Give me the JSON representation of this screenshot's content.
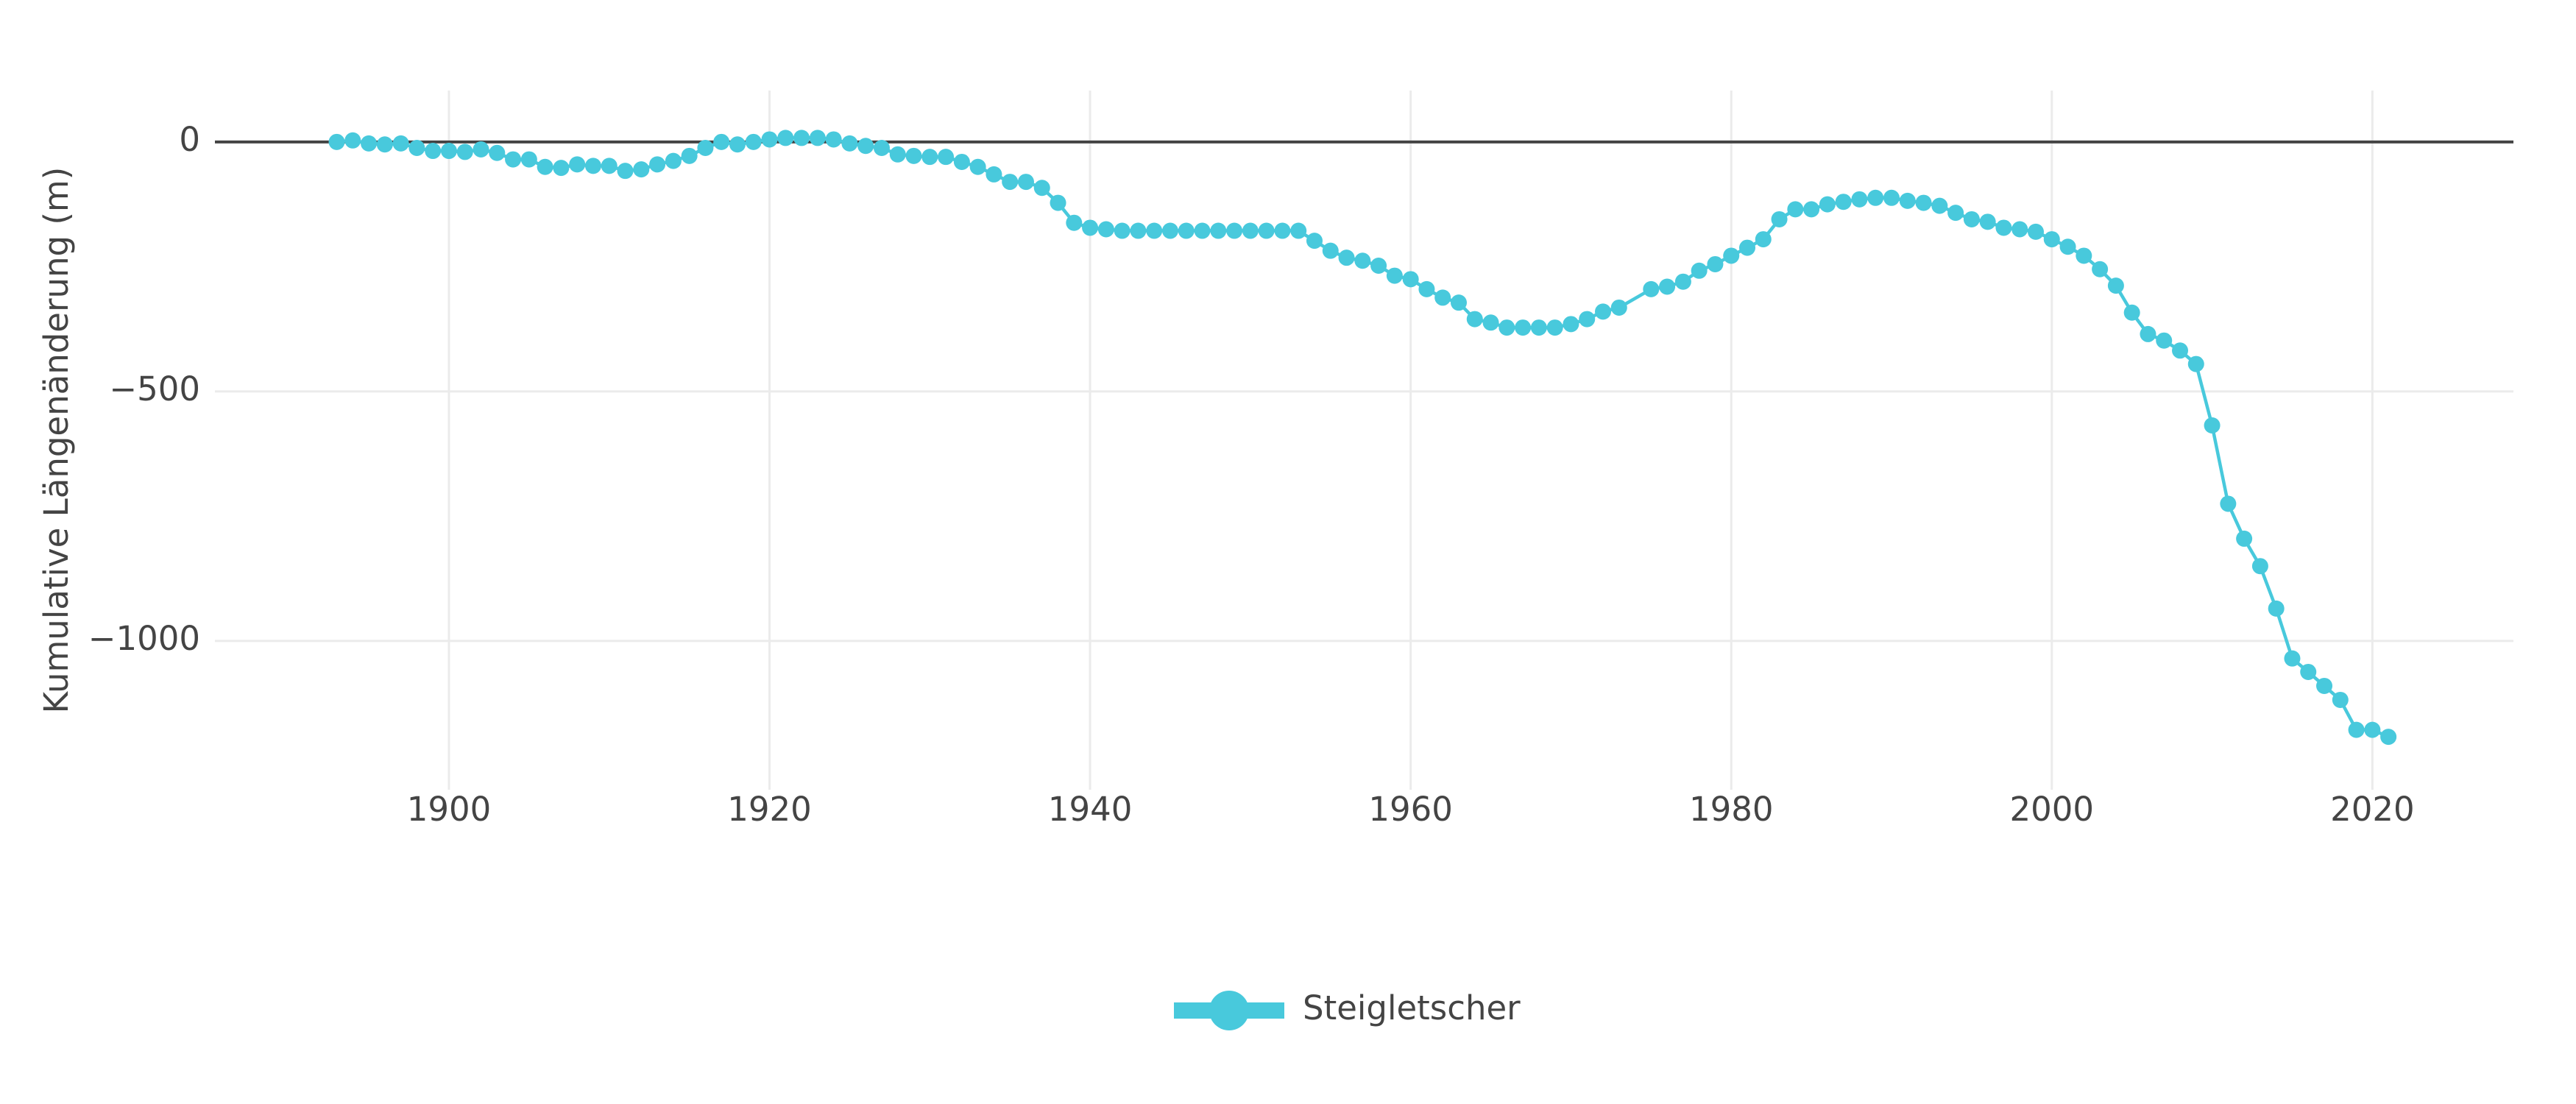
{
  "chart_data": {
    "type": "line",
    "y_label": "Kumulative Längenänderung (m)",
    "x": [
      1893,
      1894,
      1895,
      1896,
      1897,
      1898,
      1899,
      1900,
      1901,
      1902,
      1903,
      1904,
      1905,
      1906,
      1907,
      1908,
      1909,
      1910,
      1911,
      1912,
      1913,
      1914,
      1915,
      1916,
      1917,
      1918,
      1919,
      1920,
      1921,
      1922,
      1923,
      1924,
      1925,
      1926,
      1927,
      1928,
      1929,
      1930,
      1931,
      1932,
      1933,
      1934,
      1935,
      1936,
      1937,
      1938,
      1939,
      1940,
      1941,
      1942,
      1943,
      1944,
      1945,
      1946,
      1947,
      1948,
      1949,
      1950,
      1951,
      1952,
      1953,
      1954,
      1955,
      1956,
      1957,
      1958,
      1959,
      1960,
      1961,
      1962,
      1963,
      1964,
      1965,
      1966,
      1967,
      1968,
      1969,
      1970,
      1971,
      1972,
      1973,
      1975,
      1976,
      1977,
      1978,
      1979,
      1980,
      1981,
      1982,
      1983,
      1984,
      1985,
      1986,
      1987,
      1988,
      1989,
      1990,
      1991,
      1992,
      1993,
      1994,
      1995,
      1996,
      1997,
      1998,
      1999,
      2000,
      2001,
      2002,
      2003,
      2004,
      2005,
      2006,
      2007,
      2008,
      2009,
      2010,
      2011,
      2012,
      2013,
      2014,
      2015,
      2016,
      2017,
      2018,
      2019,
      2020,
      2021
    ],
    "series": [
      {
        "name": "Steigletscher",
        "color": "#48c9dc",
        "values": [
          0,
          3,
          -3,
          -5,
          -3,
          -12,
          -18,
          -18,
          -20,
          -15,
          -22,
          -35,
          -35,
          -50,
          -52,
          -45,
          -48,
          -48,
          -58,
          -55,
          -45,
          -38,
          -28,
          -12,
          0,
          -5,
          0,
          5,
          8,
          8,
          8,
          5,
          -3,
          -8,
          -12,
          -25,
          -28,
          -30,
          -30,
          -40,
          -50,
          -65,
          -80,
          -80,
          -92,
          -122,
          -162,
          -172,
          -175,
          -178,
          -178,
          -178,
          -178,
          -178,
          -178,
          -178,
          -178,
          -178,
          -178,
          -178,
          -178,
          -198,
          -218,
          -232,
          -238,
          -248,
          -268,
          -275,
          -295,
          -312,
          -322,
          -355,
          -362,
          -372,
          -372,
          -372,
          -372,
          -365,
          -355,
          -340,
          -332,
          -295,
          -290,
          -280,
          -258,
          -245,
          -228,
          -212,
          -195,
          -155,
          -135,
          -135,
          -125,
          -120,
          -115,
          -112,
          -112,
          -118,
          -122,
          -128,
          -142,
          -155,
          -160,
          -172,
          -175,
          -180,
          -195,
          -210,
          -228,
          -255,
          -288,
          -342,
          -385,
          -398,
          -418,
          -445,
          -568,
          -725,
          -795,
          -850,
          -935,
          -1035,
          -1062,
          -1090,
          -1118,
          -1178,
          -1178,
          -1192
        ]
      }
    ],
    "xlim": [
      1885.4,
      2028.8
    ],
    "xticks": [
      1900,
      1920,
      1940,
      1960,
      1980,
      2000,
      2020
    ],
    "ylim": [
      -1298,
      103
    ],
    "yticks": [
      0,
      {
        "value": -500,
        "label": "−500"
      },
      {
        "value": -1000,
        "label": "−1000"
      }
    ],
    "grid": true,
    "legend": "bottom"
  }
}
